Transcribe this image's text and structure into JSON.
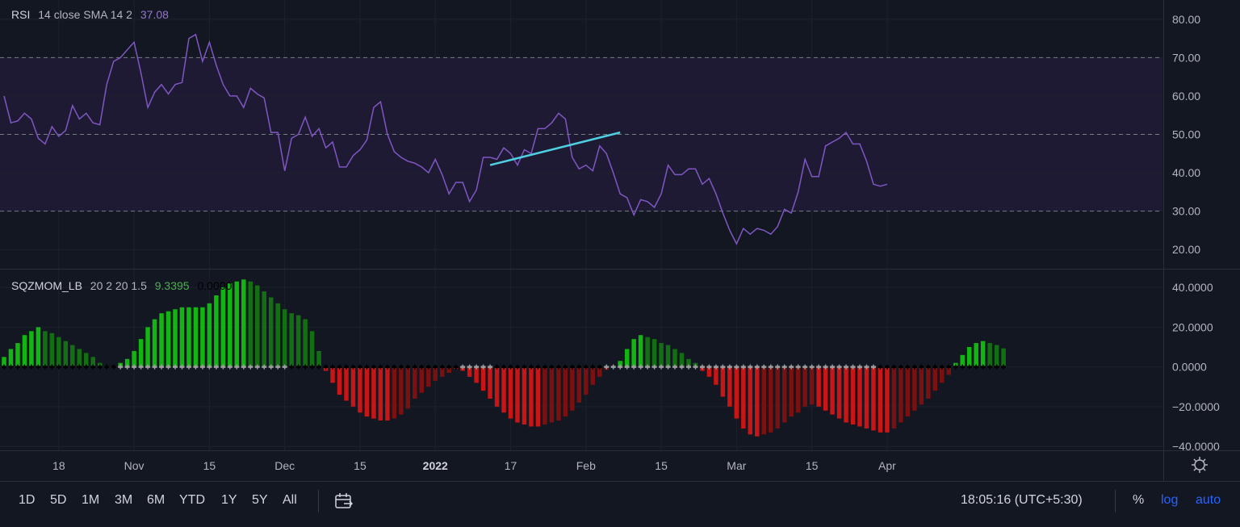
{
  "rsi_legend": {
    "name": "RSI",
    "params": "14 close SMA 14 2",
    "value": "37.08"
  },
  "sqz_legend": {
    "name": "SQZMOM_LB",
    "params": "20 2 20 1.5",
    "value1": "9.3395",
    "value2": "0.0000"
  },
  "colors": {
    "background": "#131722",
    "rsi_line": "#7e57c2",
    "rsi_band": "#1f1a33",
    "trendline": "#4dd0e1",
    "bull_strong": "#13b513",
    "bull_weak": "#146f14",
    "bear_strong": "#c81515",
    "bear_weak": "#7a1010",
    "accent": "#2962ff"
  },
  "toolbar": {
    "timeframes": [
      "1D",
      "5D",
      "1M",
      "3M",
      "6M",
      "YTD",
      "1Y",
      "5Y",
      "All"
    ],
    "time": "18:05:16 (UTC+5:30)",
    "percent": "%",
    "log": "log",
    "auto": "auto"
  },
  "icons": {
    "date_range": "calendar-range-icon",
    "settings": "gear-icon"
  },
  "chart_data": [
    {
      "type": "line",
      "title": "RSI 14 close SMA 14 2",
      "ylim": [
        15,
        85
      ],
      "y_ticks": [
        "80.00",
        "70.00",
        "60.00",
        "50.00",
        "40.00",
        "30.00",
        "20.00"
      ],
      "y_tick_values": [
        80,
        70,
        60,
        50,
        40,
        30,
        20
      ],
      "band": [
        30,
        70
      ],
      "midline": 50,
      "x_labels": [
        "18",
        "Nov",
        "15",
        "Dec",
        "15",
        "2022",
        "17",
        "Feb",
        "15",
        "Mar",
        "15",
        "Apr"
      ],
      "x_label_index": [
        8,
        19,
        30,
        41,
        52,
        63,
        74,
        85,
        96,
        107,
        118,
        129
      ],
      "series": [
        {
          "values": [
            60,
            53,
            53.5,
            55.5,
            54,
            49,
            47.5,
            52,
            49.5,
            51,
            57.5,
            54,
            55.5,
            53,
            52.5,
            63,
            69,
            70,
            72,
            74,
            66,
            57,
            61,
            63,
            60.5,
            63,
            63.5,
            75,
            76,
            69,
            74,
            68,
            63,
            60,
            60,
            57,
            62,
            60.5,
            59.5,
            50.5,
            50.5,
            40.5,
            49,
            50,
            54.5,
            49.5,
            51.5,
            46.5,
            48,
            41.5,
            41.5,
            44.5,
            46,
            48.5,
            57,
            58.5,
            50,
            45.5,
            44,
            43,
            42.5,
            41.5,
            40,
            43.5,
            39.5,
            34.5,
            37.5,
            37.5,
            32.5,
            35.5,
            44,
            44,
            43.5,
            46.5,
            45,
            42,
            46,
            45,
            51.5,
            51.5,
            53,
            55.5,
            54,
            44,
            41,
            42,
            40.5,
            47,
            45,
            40,
            34.5,
            33.5,
            29,
            33,
            32.5,
            31,
            34.5,
            42,
            39.5,
            39.5,
            41,
            41,
            37,
            38.5,
            34.5,
            29.5,
            25,
            21.5,
            25.5,
            24,
            25.5,
            25,
            24,
            26,
            30.5,
            29.5,
            35,
            43.5,
            39,
            39,
            47,
            48,
            49,
            50.5,
            47.5,
            47.5,
            43,
            37,
            36.5,
            37
          ]
        }
      ],
      "trendline": {
        "x": [
          71,
          90
        ],
        "y": [
          42,
          50.5
        ]
      }
    },
    {
      "type": "bar",
      "title": "SQZMOM_LB 20 2 20 1.5",
      "ylim": [
        -42,
        49
      ],
      "y_ticks": [
        "40.0000",
        "20.0000",
        "0.0000",
        "−20.0000",
        "−40.0000"
      ],
      "y_tick_values": [
        40,
        20,
        0,
        -20,
        -40
      ],
      "series": [
        {
          "values": [
            5,
            9,
            12,
            16,
            18,
            20,
            18,
            17,
            15,
            13,
            11,
            9,
            7,
            5,
            2,
            0.5,
            -0.5,
            2,
            4,
            8,
            14,
            20,
            24,
            27,
            28,
            29,
            30,
            30,
            30,
            30,
            32,
            36,
            40,
            42,
            43,
            44,
            43,
            41,
            38,
            35,
            32,
            29,
            27,
            26,
            24,
            18,
            8,
            -2,
            -8,
            -14,
            -17,
            -20,
            -23,
            -25,
            -26,
            -27,
            -27,
            -26,
            -24,
            -21,
            -16,
            -13,
            -10,
            -7,
            -5,
            -3,
            -1,
            -2,
            -5,
            -8,
            -12,
            -16,
            -20,
            -23,
            -26,
            -28,
            -29,
            -30,
            -30,
            -29,
            -28,
            -27,
            -25,
            -22,
            -18,
            -14,
            -9,
            -5,
            -1.5,
            0.5,
            3,
            9,
            14,
            16,
            15,
            14,
            12,
            11,
            9,
            7,
            4,
            2,
            -2,
            -5,
            -9,
            -15,
            -20,
            -26,
            -31,
            -34,
            -35,
            -34,
            -33,
            -31,
            -28,
            -25,
            -23,
            -20,
            -19,
            -20,
            -22,
            -24,
            -26,
            -28,
            -29,
            -30,
            -31,
            -32,
            -33,
            -33,
            -31,
            -28,
            -25,
            -22,
            -19,
            -16,
            -12,
            -8,
            -4,
            2,
            6,
            10,
            12,
            13,
            12,
            11,
            9.3
          ]
        }
      ]
    }
  ]
}
